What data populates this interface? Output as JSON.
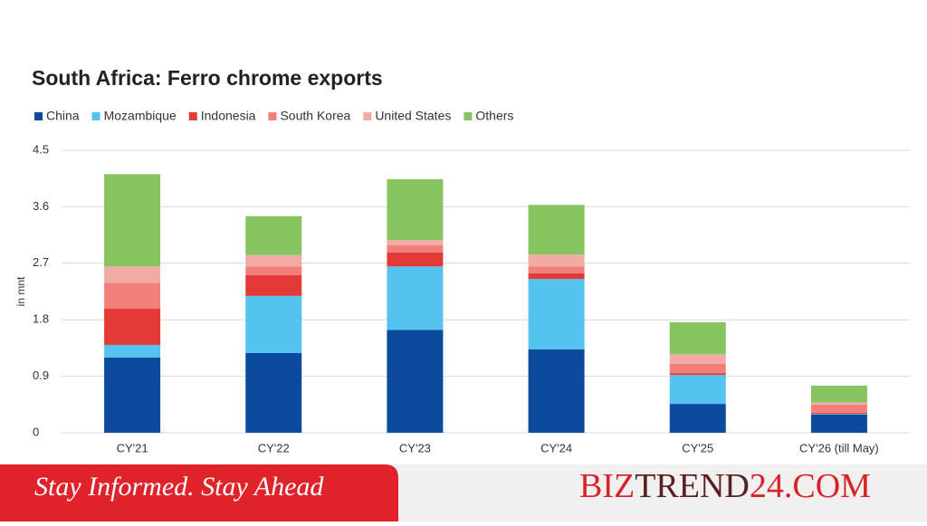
{
  "chart_data": {
    "type": "stacked_bar",
    "title": "South Africa: Ferro chrome exports",
    "y_label": "in mnt",
    "categories": [
      "CY'21",
      "CY'22",
      "CY'23",
      "CY'24",
      "CY'25",
      "CY'26 (till May)"
    ],
    "series": [
      {
        "name": "China",
        "color": "#0b4a9c",
        "values": [
          1.2,
          1.27,
          1.64,
          1.33,
          0.46,
          0.29
        ]
      },
      {
        "name": "Mozambique",
        "color": "#55c3f0",
        "values": [
          0.2,
          0.91,
          1.01,
          1.12,
          0.46,
          0.01
        ]
      },
      {
        "name": "Indonesia",
        "color": "#e43a37",
        "values": [
          0.58,
          0.33,
          0.22,
          0.09,
          0.03,
          0.02
        ]
      },
      {
        "name": "South Korea",
        "color": "#f27f7a",
        "values": [
          0.41,
          0.14,
          0.12,
          0.11,
          0.15,
          0.13
        ]
      },
      {
        "name": "United States",
        "color": "#f2aaa5",
        "values": [
          0.26,
          0.18,
          0.08,
          0.19,
          0.15,
          0.03
        ]
      },
      {
        "name": "Others",
        "color": "#86c45f",
        "values": [
          1.47,
          0.62,
          0.97,
          0.79,
          0.51,
          0.27
        ]
      }
    ],
    "ylim": [
      0,
      4.5
    ],
    "yticks": [
      0,
      0.9,
      1.8,
      2.7,
      3.6,
      4.5
    ],
    "grid": true
  },
  "footer": {
    "tagline": "Stay Informed. Stay Ahead",
    "brand": [
      "BIZ",
      "TREND",
      "24.COM"
    ]
  }
}
